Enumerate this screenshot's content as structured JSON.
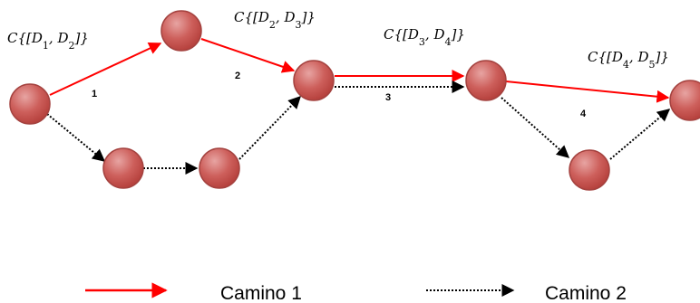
{
  "nodes": [
    {
      "id": "n1"
    },
    {
      "id": "n2"
    },
    {
      "id": "n3"
    },
    {
      "id": "n4"
    },
    {
      "id": "n5"
    },
    {
      "id": "n6"
    },
    {
      "id": "n7"
    },
    {
      "id": "n8"
    }
  ],
  "segments": [
    {
      "label": "1"
    },
    {
      "label": "2"
    },
    {
      "label": "3"
    },
    {
      "label": "4"
    }
  ],
  "cost_labels": [
    {
      "text": "C{[D1, D2]}",
      "a": "1",
      "b": "2"
    },
    {
      "text": "C{[D2, D3]}",
      "a": "2",
      "b": "3"
    },
    {
      "text": "C{[D3, D4]}",
      "a": "3",
      "b": "4"
    },
    {
      "text": "C{[D4, D5]}",
      "a": "4",
      "b": "5"
    }
  ],
  "legend": [
    {
      "label": "Camino 1",
      "style": "solid",
      "color": "#ff0000"
    },
    {
      "label": "Camino 2",
      "style": "dotted",
      "color": "#000000"
    }
  ],
  "colors": {
    "node_fill": "#c0504d",
    "node_stroke": "#9b3d3a",
    "path1": "#ff0000",
    "path2": "#000000"
  }
}
